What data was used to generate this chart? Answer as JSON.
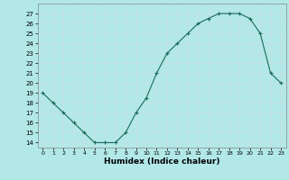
{
  "x": [
    0,
    1,
    2,
    3,
    4,
    5,
    6,
    7,
    8,
    9,
    10,
    11,
    12,
    13,
    14,
    15,
    16,
    17,
    18,
    19,
    20,
    21,
    22,
    23
  ],
  "y": [
    19,
    18,
    17,
    16,
    15,
    14,
    14,
    14,
    15,
    17,
    18.5,
    21,
    23,
    24,
    25,
    26,
    26.5,
    27,
    27,
    27,
    26.5,
    25,
    21,
    20
  ],
  "line_color": "#1a6b5a",
  "marker": "+",
  "bg_color": "#b2e8e8",
  "grid_color": "#c8e0e0",
  "xlabel": "Humidex (Indice chaleur)",
  "ylabel_ticks": [
    14,
    15,
    16,
    17,
    18,
    19,
    20,
    21,
    22,
    23,
    24,
    25,
    26,
    27
  ],
  "ylim": [
    13.5,
    28
  ],
  "xlim": [
    -0.5,
    23.5
  ]
}
